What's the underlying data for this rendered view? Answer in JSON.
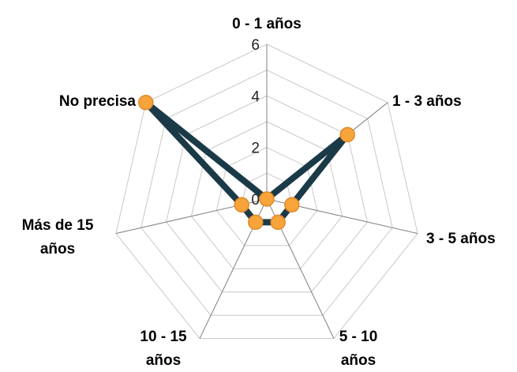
{
  "chart_data": {
    "type": "radar",
    "categories": [
      "0 - 1 años",
      "1 - 3 años",
      "3 - 5 años",
      "5 - 10 años",
      "10 - 15 años",
      "Más de 15 años",
      "No precisa"
    ],
    "category_lines": [
      [
        "0 - 1 años"
      ],
      [
        "1 - 3 años"
      ],
      [
        "3 - 5 años"
      ],
      [
        "5 - 10",
        "años"
      ],
      [
        "10 - 15",
        "años"
      ],
      [
        "Más de 15",
        "años"
      ],
      [
        "No precisa"
      ]
    ],
    "series": [
      {
        "values": [
          0,
          4,
          1,
          1,
          1,
          1,
          6
        ]
      }
    ],
    "rlim": [
      0,
      6
    ],
    "ticks": [
      "0",
      "2",
      "4",
      "6"
    ],
    "colors": {
      "line": "#1b3a48",
      "marker_fill": "#f7a43a",
      "marker_stroke": "#e0892a",
      "grid": "#c8c8c8",
      "spoke": "#808080"
    },
    "legend": "none"
  }
}
